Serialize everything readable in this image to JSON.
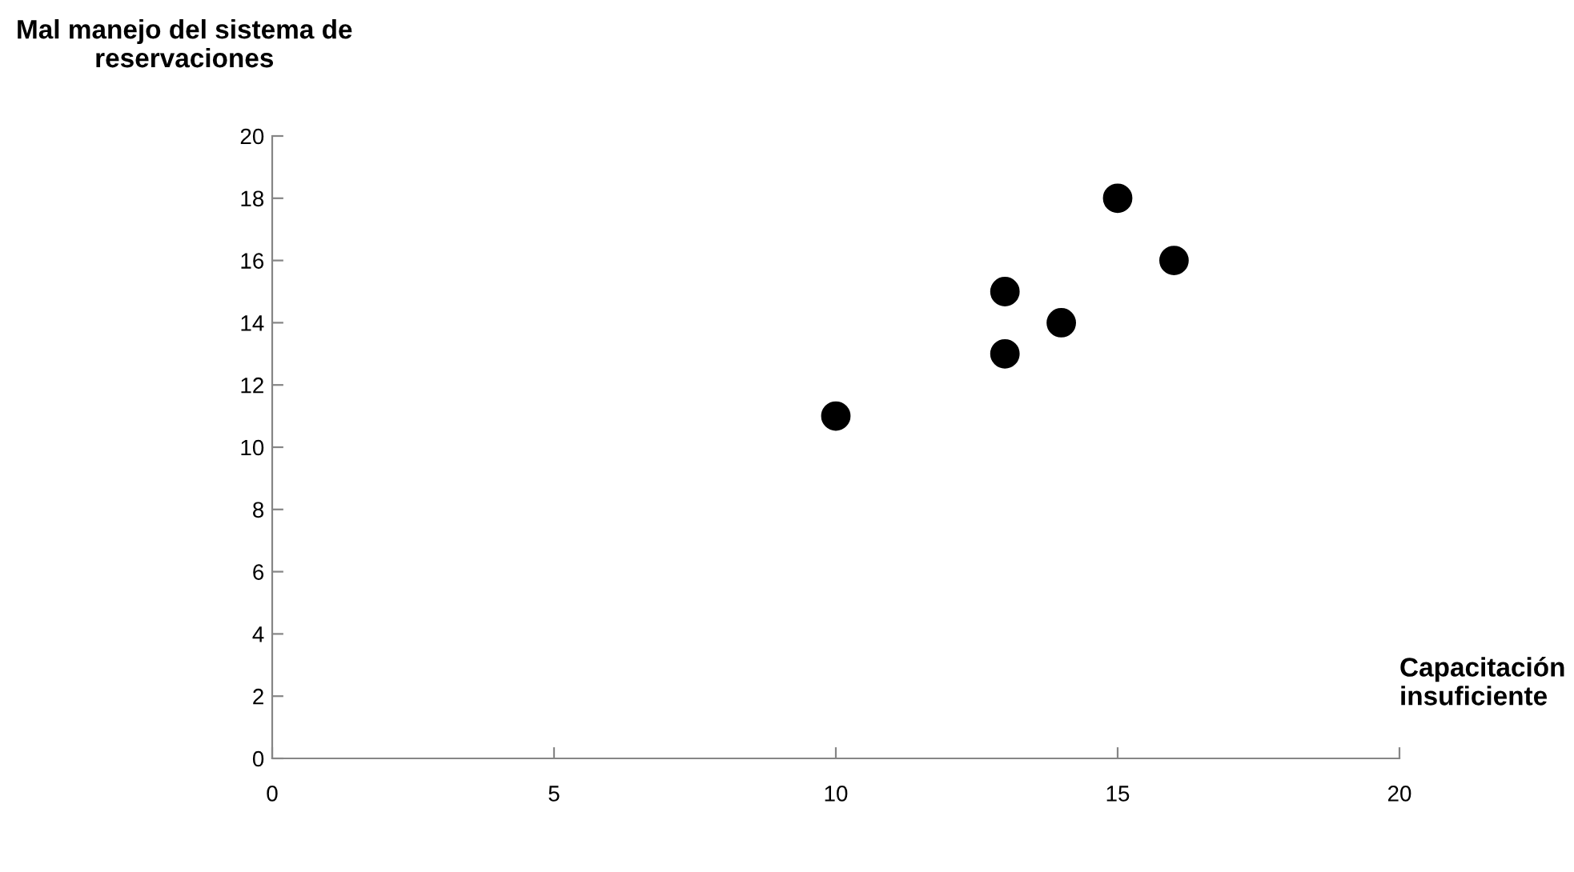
{
  "chart_data": {
    "type": "scatter",
    "xlabel": "Capacitación\ninsuficiente",
    "ylabel": "Mal manejo del sistema de\nreservaciones",
    "x": [
      10,
      13,
      13,
      14,
      15,
      16
    ],
    "series": [
      {
        "color": "#000000",
        "values": [
          11,
          13,
          15,
          14,
          18,
          16
        ]
      }
    ],
    "xlim": [
      0,
      20
    ],
    "xticks": [
      0,
      5,
      10,
      15,
      20
    ],
    "ylim": [
      0,
      20
    ],
    "yticks": [
      0,
      2,
      4,
      6,
      8,
      10,
      12,
      14,
      16,
      18,
      20
    ],
    "marker": "circle",
    "grid": false
  }
}
